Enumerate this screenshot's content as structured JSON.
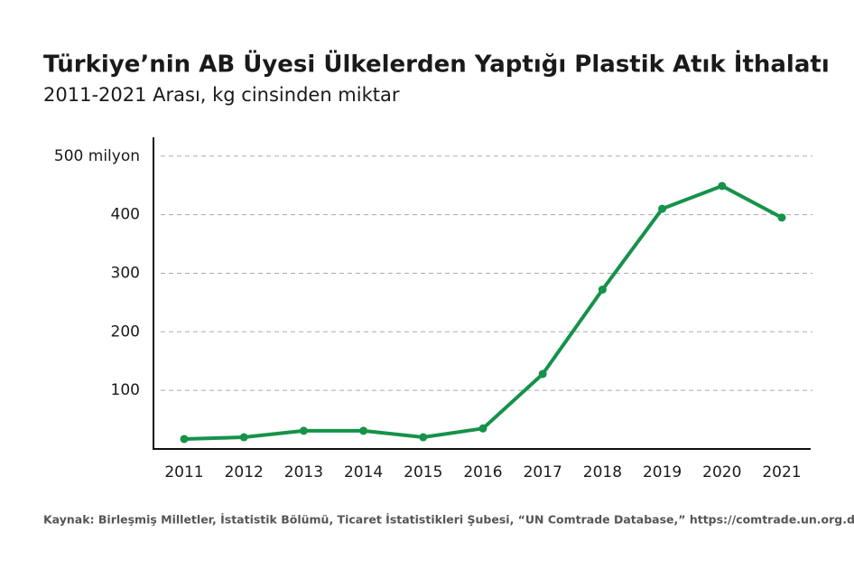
{
  "chart_data": {
    "type": "line",
    "title": "Türkiye’nin AB Üyesi Ülkelerden Yaptığı Plastik Atık İthalatı",
    "subtitle": "2011-2021 Arası, kg cinsinden miktar",
    "source": "Kaynak: Birleşmiş Milletler, İstatistik Bölümü, Ticaret İstatistikleri Şubesi, “UN Comtrade Database,” https://comtrade.un.org.data",
    "categories": [
      "2011",
      "2012",
      "2013",
      "2014",
      "2015",
      "2016",
      "2017",
      "2018",
      "2019",
      "2020",
      "2021"
    ],
    "series": [
      {
        "name": "Plastik atık ithalatı",
        "color": "#16924a",
        "values": [
          17,
          20,
          31,
          31,
          20,
          35,
          128,
          272,
          410,
          449,
          395
        ]
      }
    ],
    "ylim": [
      0,
      532
    ],
    "yticks": [
      100,
      200,
      300,
      400,
      {
        "value": 500,
        "label": "500 milyon"
      }
    ],
    "grid": true
  }
}
